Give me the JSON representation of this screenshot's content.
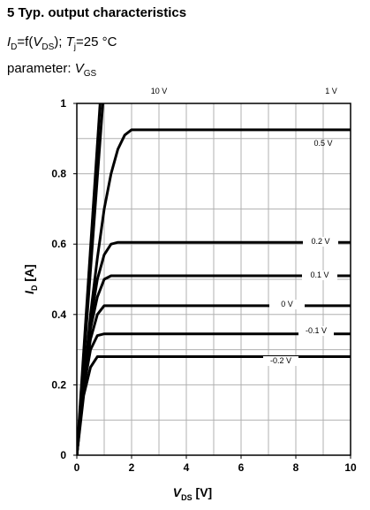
{
  "header": {
    "title": "5 Typ. output characteristics",
    "line2": [
      "I",
      "D",
      "=f(",
      "V",
      "DS",
      "); ",
      "T",
      "j",
      "=25 °C"
    ],
    "line3": [
      "parameter: ",
      "V",
      "GS"
    ]
  },
  "chart_data": {
    "type": "line",
    "x_label": [
      "V",
      "DS",
      " [V]"
    ],
    "y_label": [
      "I",
      "D",
      " [A]"
    ],
    "xlim": [
      0,
      10
    ],
    "ylim": [
      0,
      1
    ],
    "xticks": [
      0,
      2,
      4,
      6,
      8,
      10
    ],
    "yticks": [
      0,
      0.2,
      0.4,
      0.6,
      0.8,
      1
    ],
    "xgrid": [
      1,
      2,
      3,
      4,
      5,
      6,
      7,
      8,
      9
    ],
    "ygrid": [
      0.1,
      0.2,
      0.3,
      0.4,
      0.5,
      0.6,
      0.7,
      0.8,
      0.9
    ],
    "grid": true,
    "color": "#000000",
    "series": [
      {
        "name": "10 V",
        "x": [
          0,
          0.85
        ],
        "values": [
          0,
          1
        ]
      },
      {
        "name": "1 V",
        "x": [
          0,
          0.95
        ],
        "values": [
          0,
          1
        ]
      },
      {
        "name": "0.5 V",
        "x": [
          0,
          0.25,
          0.5,
          0.75,
          1,
          1.25,
          1.5,
          1.75,
          2,
          2.5,
          10
        ],
        "values": [
          0,
          0.2,
          0.4,
          0.56,
          0.7,
          0.8,
          0.87,
          0.91,
          0.925,
          0.925,
          0.925
        ]
      },
      {
        "name": "0.2 V",
        "x": [
          0,
          0.25,
          0.5,
          0.75,
          1,
          1.25,
          1.5,
          10
        ],
        "values": [
          0,
          0.2,
          0.38,
          0.5,
          0.57,
          0.6,
          0.605,
          0.605
        ]
      },
      {
        "name": "0.1 V",
        "x": [
          0,
          0.25,
          0.5,
          0.75,
          1,
          1.25,
          10
        ],
        "values": [
          0,
          0.2,
          0.36,
          0.45,
          0.5,
          0.51,
          0.51
        ]
      },
      {
        "name": "0 V",
        "x": [
          0,
          0.25,
          0.5,
          0.75,
          1,
          10
        ],
        "values": [
          0,
          0.2,
          0.33,
          0.4,
          0.425,
          0.425
        ]
      },
      {
        "name": "-0.1 V",
        "x": [
          0,
          0.25,
          0.5,
          0.75,
          1,
          10
        ],
        "values": [
          0,
          0.19,
          0.3,
          0.34,
          0.345,
          0.345
        ]
      },
      {
        "name": "-0.2 V",
        "x": [
          0,
          0.25,
          0.5,
          0.75,
          1,
          10
        ],
        "values": [
          0,
          0.17,
          0.25,
          0.28,
          0.28,
          0.28
        ]
      }
    ]
  }
}
